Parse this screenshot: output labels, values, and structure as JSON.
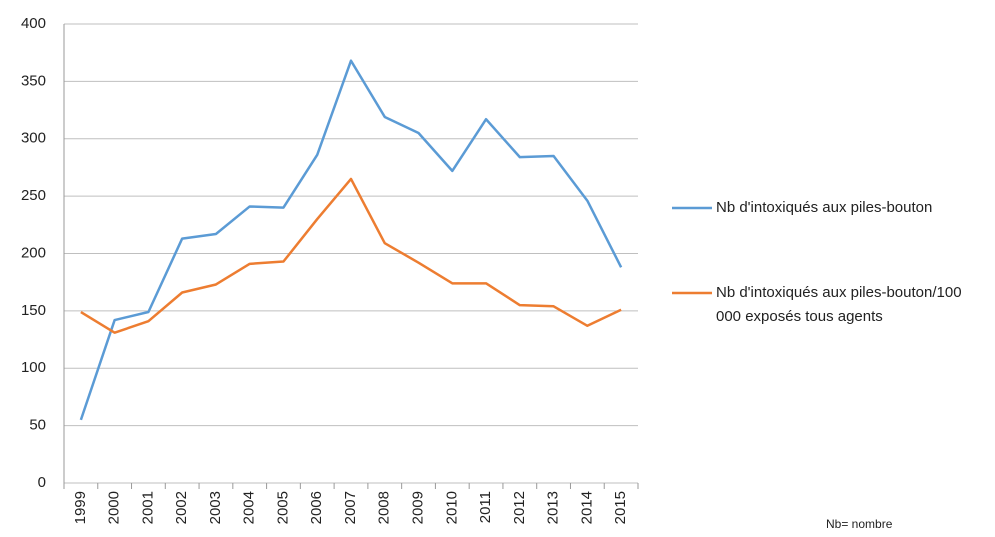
{
  "chart_data": {
    "type": "line",
    "categories": [
      "1999",
      "2000",
      "2001",
      "2002",
      "2003",
      "2004",
      "2005",
      "2006",
      "2007",
      "2008",
      "2009",
      "2010",
      "2011",
      "2012",
      "2013",
      "2014",
      "2015"
    ],
    "series": [
      {
        "name": "Nb d'intoxiqués aux piles-bouton",
        "color": "#5b9bd5",
        "values": [
          55,
          142,
          149,
          213,
          217,
          241,
          240,
          286,
          368,
          319,
          305,
          272,
          317,
          284,
          285,
          246,
          188
        ]
      },
      {
        "name": "Nb d'intoxiqués aux piles-bouton/100 000 exposés tous agents",
        "color": "#ed7d31",
        "values": [
          149,
          131,
          141,
          166,
          173,
          191,
          193,
          230,
          265,
          209,
          192,
          174,
          174,
          155,
          154,
          137,
          151
        ]
      }
    ],
    "ylim": [
      0,
      400
    ],
    "yticks": [
      0,
      50,
      100,
      150,
      200,
      250,
      300,
      350,
      400
    ],
    "grid": true,
    "legend": "right",
    "note": "Nb= nombre"
  }
}
